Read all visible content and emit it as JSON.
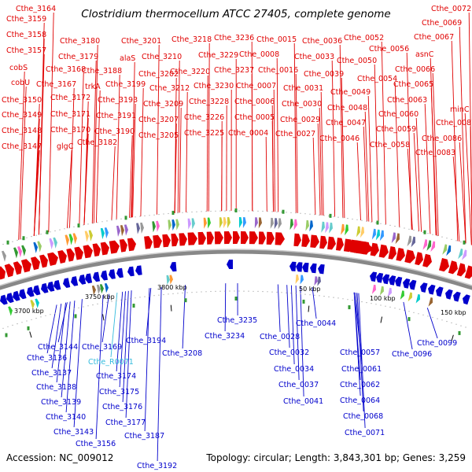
{
  "title": "Clostridium thermocellum ATCC 27405, complete genome",
  "footer": {
    "accession": "Accession: NC_009012",
    "summary": "Topology: circular; Length: 3,843,301 bp; Genes: 3,259"
  },
  "colors": {
    "forward_strand": "#e00000",
    "reverse_strand": "#0000cc",
    "rna_label": "#33bbdd",
    "backbone": "#888888"
  },
  "kbp_ticks": [
    "3700 kbp",
    "3750 kbp",
    "3800 kbp",
    "50 kbp",
    "100 kbp",
    "150 kbp"
  ],
  "top_labels": [
    "Cthe_3164",
    "Cthe_3159",
    "Cthe_3158",
    "Cthe_3157",
    "cobS",
    "cobU",
    "Cthe_3150",
    "Cthe_3149",
    "Cthe_3148",
    "Cthe_3147",
    "Cthe_3180",
    "Cthe_3179",
    "Cthe_3168",
    "Cthe_3167",
    "Cthe_3172",
    "Cthe_3171",
    "Cthe_3170",
    "glgC",
    "Cthe_3188",
    "trkA",
    "Cthe_3182",
    "Cthe_3201",
    "alaS",
    "Cthe_3199",
    "Cthe_3193",
    "Cthe_3191",
    "Cthe_3190",
    "Cthe_3210",
    "Cthe_3202",
    "Cthe_3212",
    "Cthe_3209",
    "Cthe_3207",
    "Cthe_3205",
    "Cthe_3218",
    "Cthe_3220",
    "Cthe_3226",
    "Cthe_3225",
    "Cthe_3236",
    "Cthe_3229",
    "Cthe_3230",
    "Cthe_3228",
    "Cthe_0015",
    "Cthe_0008",
    "Cthe_3237",
    "Cthe_0007",
    "Cthe_0006",
    "Cthe_0005",
    "Cthe_0004",
    "Cthe_0016",
    "Cthe_0036",
    "Cthe_0033",
    "Cthe_0039",
    "Cthe_0031",
    "Cthe_0030",
    "Cthe_0029",
    "Cthe_0027",
    "Cthe_0052",
    "Cthe_0050",
    "Cthe_0049",
    "Cthe_0048",
    "Cthe_0047",
    "Cthe_0046",
    "Cthe_0056",
    "Cthe_0054",
    "Cthe_0063",
    "Cthe_0060",
    "Cthe_0059",
    "Cthe_0058",
    "Cthe_0072",
    "Cthe_0069",
    "Cthe_0067",
    "asnC",
    "Cthe_0066",
    "Cthe_0065",
    "minC",
    "Cthe_0087",
    "Cthe_0086",
    "Cthe_0083"
  ],
  "bottom_labels": [
    "Cthe_3144",
    "Cthe_3136",
    "Cthe_3137",
    "Cthe_3138",
    "Cthe_3139",
    "Cthe_3140",
    "Cthe_3143",
    "Cthe_3156",
    "Cthe_3169",
    "Cthe_R0071",
    "Cthe_3174",
    "Cthe_3175",
    "Cthe_3176",
    "Cthe_3177",
    "Cthe_3187",
    "Cthe_3192",
    "Cthe_3194",
    "Cthe_3208",
    "Cthe_3235",
    "Cthe_3234",
    "Cthe_0028",
    "Cthe_0032",
    "Cthe_0034",
    "Cthe_0037",
    "Cthe_0041",
    "Cthe_0044",
    "Cthe_0057",
    "Cthe_0061",
    "Cthe_0062",
    "Cthe_0064",
    "Cthe_0068",
    "Cthe_0071",
    "Cthe_0099",
    "Cthe_0096"
  ]
}
